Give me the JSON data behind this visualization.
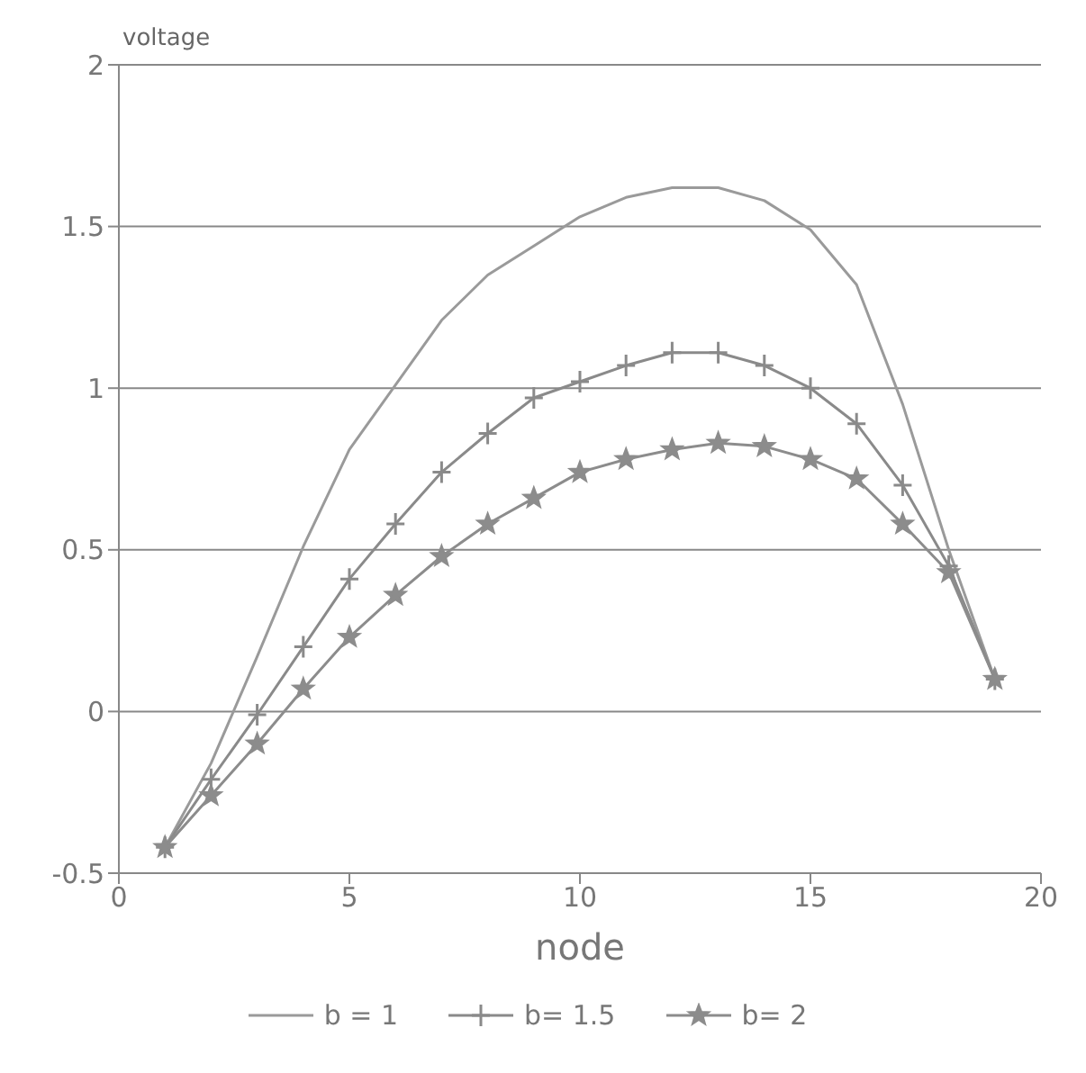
{
  "chart_data": {
    "type": "line",
    "xlabel": "node",
    "ylabel": "voltage",
    "x": [
      1,
      2,
      3,
      4,
      5,
      6,
      7,
      8,
      9,
      10,
      11,
      12,
      13,
      14,
      15,
      16,
      17,
      18,
      19
    ],
    "series": [
      {
        "name": "b = 1",
        "color": "#9a9a9a",
        "marker": "none",
        "values": [
          -0.42,
          -0.16,
          0.17,
          0.51,
          0.81,
          1.01,
          1.21,
          1.35,
          1.44,
          1.53,
          1.59,
          1.62,
          1.62,
          1.58,
          1.49,
          1.32,
          0.95,
          0.5,
          0.1
        ]
      },
      {
        "name": "b= 1.5",
        "color": "#8a8a8a",
        "marker": "cross",
        "values": [
          -0.42,
          -0.21,
          -0.01,
          0.2,
          0.41,
          0.58,
          0.74,
          0.86,
          0.97,
          1.02,
          1.07,
          1.11,
          1.11,
          1.07,
          1.0,
          0.89,
          0.7,
          0.45,
          0.1
        ]
      },
      {
        "name": "b= 2",
        "color": "#8c8c8c",
        "marker": "star",
        "values": [
          -0.42,
          -0.26,
          -0.1,
          0.07,
          0.23,
          0.36,
          0.48,
          0.58,
          0.66,
          0.74,
          0.78,
          0.81,
          0.83,
          0.82,
          0.78,
          0.72,
          0.58,
          0.43,
          0.1
        ]
      }
    ],
    "xlim": [
      0,
      20
    ],
    "xticks": [
      0,
      5,
      10,
      15,
      20
    ],
    "ylim": [
      -0.5,
      2
    ],
    "yticks": [
      -0.5,
      0,
      0.5,
      1,
      1.5,
      2
    ],
    "grid": "y",
    "legend": "bottom",
    "line_style": "solid"
  }
}
